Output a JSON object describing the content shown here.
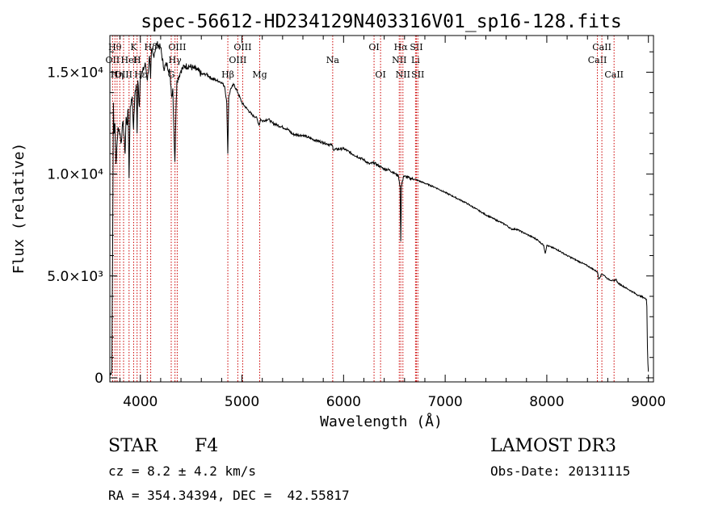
{
  "chart_data": {
    "type": "line",
    "title": "spec-56612-HD234129N403316V01_sp16-128.fits",
    "xlabel": "Wavelength (Å)",
    "ylabel": "Flux (relative)",
    "xlim": [
      3700,
      9050
    ],
    "ylim": [
      -200,
      16800
    ],
    "x_ticks": [
      4000,
      5000,
      6000,
      7000,
      8000,
      9000
    ],
    "y_ticks": [
      {
        "value": 0,
        "label": "0"
      },
      {
        "value": 5000,
        "label": "5.0×10³"
      },
      {
        "value": 10000,
        "label": "1.0×10⁴"
      },
      {
        "value": 15000,
        "label": "1.5×10⁴"
      }
    ],
    "series": [
      {
        "name": "flux",
        "x": [
          3700,
          3720,
          3730,
          3735,
          3740,
          3750,
          3760,
          3780,
          3800,
          3810,
          3830,
          3850,
          3860,
          3870,
          3880,
          3889,
          3900,
          3920,
          3933,
          3945,
          3960,
          3968,
          3975,
          3990,
          4000,
          4020,
          4050,
          4070,
          4090,
          4101,
          4110,
          4130,
          4160,
          4200,
          4230,
          4260,
          4290,
          4310,
          4320,
          4330,
          4340,
          4345,
          4350,
          4360,
          4380,
          4400,
          4440,
          4480,
          4520,
          4560,
          4600,
          4650,
          4700,
          4750,
          4800,
          4830,
          4850,
          4861,
          4870,
          4890,
          4920,
          4960,
          5000,
          5050,
          5100,
          5140,
          5170,
          5183,
          5200,
          5260,
          5300,
          5350,
          5400,
          5450,
          5500,
          5600,
          5700,
          5800,
          5890,
          5900,
          6000,
          6100,
          6200,
          6250,
          6300,
          6400,
          6450,
          6500,
          6540,
          6556,
          6563,
          6570,
          6590,
          6650,
          6700,
          6800,
          6900,
          7000,
          7100,
          7200,
          7300,
          7400,
          7500,
          7600,
          7650,
          7700,
          7800,
          7900,
          7970,
          7985,
          8000,
          8100,
          8200,
          8300,
          8400,
          8498,
          8510,
          8542,
          8560,
          8600,
          8662,
          8680,
          8700,
          8800,
          8900,
          8950,
          8980,
          8985,
          8990,
          8995,
          9000
        ],
        "y": [
          100,
          400,
          9000,
          13500,
          12000,
          12500,
          10500,
          12300,
          12000,
          11500,
          12600,
          11000,
          12800,
          12400,
          13200,
          9800,
          13300,
          13800,
          12200,
          13800,
          14400,
          12000,
          14600,
          13300,
          14800,
          15000,
          15400,
          14600,
          15800,
          14700,
          16100,
          15800,
          16400,
          16200,
          15200,
          15400,
          15000,
          13800,
          14200,
          12200,
          10600,
          11500,
          13000,
          14600,
          14800,
          15100,
          15300,
          15300,
          15200,
          15100,
          14900,
          14900,
          14700,
          14600,
          14500,
          14300,
          13500,
          11000,
          13800,
          14200,
          14400,
          14000,
          13500,
          13200,
          12900,
          12800,
          12400,
          12700,
          12600,
          12700,
          12500,
          12400,
          12300,
          12200,
          11950,
          11900,
          11700,
          11550,
          11400,
          11200,
          11250,
          10950,
          10700,
          10500,
          10550,
          10250,
          10200,
          10050,
          9900,
          9400,
          6700,
          9400,
          9900,
          9800,
          9750,
          9550,
          9350,
          9100,
          8850,
          8600,
          8300,
          8000,
          7750,
          7500,
          7300,
          7300,
          7050,
          6800,
          6500,
          6100,
          6500,
          6300,
          6000,
          5750,
          5500,
          5200,
          4850,
          5100,
          5050,
          4850,
          4750,
          4850,
          4650,
          4350,
          4050,
          3950,
          3850,
          3500,
          1500,
          700,
          300
        ]
      }
    ],
    "line_marks": [
      {
        "x": 3727,
        "label": "OII",
        "row": 2
      },
      {
        "x": 3750,
        "label": "Hθ",
        "row": 1
      },
      {
        "x": 3771,
        "label": "Hη",
        "row": 3
      },
      {
        "x": 3798,
        "label": "",
        "row": 0
      },
      {
        "x": 3835,
        "label": "OIII",
        "row": 3
      },
      {
        "x": 3889,
        "label": "HeI",
        "row": 2
      },
      {
        "x": 3934,
        "label": "K",
        "row": 1
      },
      {
        "x": 3968,
        "label": "H",
        "row": 2
      },
      {
        "x": 4000,
        "label": "Hε",
        "row": 3
      },
      {
        "x": 4068,
        "label": "",
        "row": 0
      },
      {
        "x": 4102,
        "label": "Hδ",
        "row": 1
      },
      {
        "x": 4304,
        "label": "G",
        "row": 3
      },
      {
        "x": 4341,
        "label": "Hγ",
        "row": 2
      },
      {
        "x": 4363,
        "label": "OIII",
        "row": 1
      },
      {
        "x": 4861,
        "label": "Hβ",
        "row": 3
      },
      {
        "x": 4959,
        "label": "OIII",
        "row": 2
      },
      {
        "x": 5007,
        "label": "OIII",
        "row": 1
      },
      {
        "x": 5175,
        "label": "Mg",
        "row": 3
      },
      {
        "x": 5893,
        "label": "Na",
        "row": 2
      },
      {
        "x": 6300,
        "label": "OI",
        "row": 1
      },
      {
        "x": 6364,
        "label": "OI",
        "row": 3
      },
      {
        "x": 6548,
        "label": "NII",
        "row": 2
      },
      {
        "x": 6563,
        "label": "Hα",
        "row": 1
      },
      {
        "x": 6584,
        "label": "NII",
        "row": 3
      },
      {
        "x": 6708,
        "label": "Li",
        "row": 2
      },
      {
        "x": 6717,
        "label": "SII",
        "row": 1
      },
      {
        "x": 6731,
        "label": "SII",
        "row": 3
      },
      {
        "x": 8498,
        "label": "CaII",
        "row": 2
      },
      {
        "x": 8542,
        "label": "CaII",
        "row": 1
      },
      {
        "x": 8662,
        "label": "CaII",
        "row": 3
      }
    ],
    "grid": false
  },
  "info": {
    "object_class": "STAR",
    "subclass": "F4",
    "cz": "cz = 8.2 ± 4.2 km/s",
    "coords": "RA = 354.34394, DEC =  42.55817",
    "survey": "LAMOST DR3",
    "obs_date": "Obs-Date: 20131115"
  },
  "colors": {
    "axis": "#000000",
    "line_marks": "#cc0000",
    "spectrum": "#000000"
  }
}
